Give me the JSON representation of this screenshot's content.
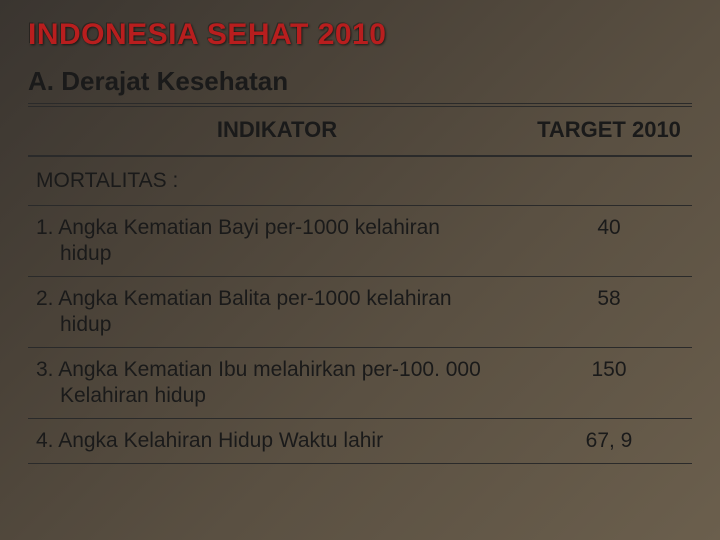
{
  "title": "INDONESIA SEHAT 2010",
  "subtitle": "A. Derajat Kesehatan",
  "table": {
    "columns": [
      "INDIKATOR",
      "TARGET 2010"
    ],
    "section": "MORTALITAS :",
    "rows": [
      {
        "label_line1": "1. Angka Kematian Bayi per-1000 kelahiran",
        "label_line2": "hidup",
        "value": "40"
      },
      {
        "label_line1": "2. Angka Kematian Balita per-1000 kelahiran",
        "label_line2": "hidup",
        "value": "58"
      },
      {
        "label_line1": "3. Angka Kematian Ibu melahirkan per-100. 000",
        "label_line2": "Kelahiran hidup",
        "value": "150"
      },
      {
        "label_line1": "4. Angka Kelahiran Hidup Waktu lahir",
        "label_line2": "",
        "value": "67, 9"
      }
    ]
  },
  "colors": {
    "title_color": "#b81e1e",
    "text_color": "#1a1a1a",
    "bg_gradient_start": "#3a3530",
    "bg_gradient_end": "#6b5f4d"
  }
}
